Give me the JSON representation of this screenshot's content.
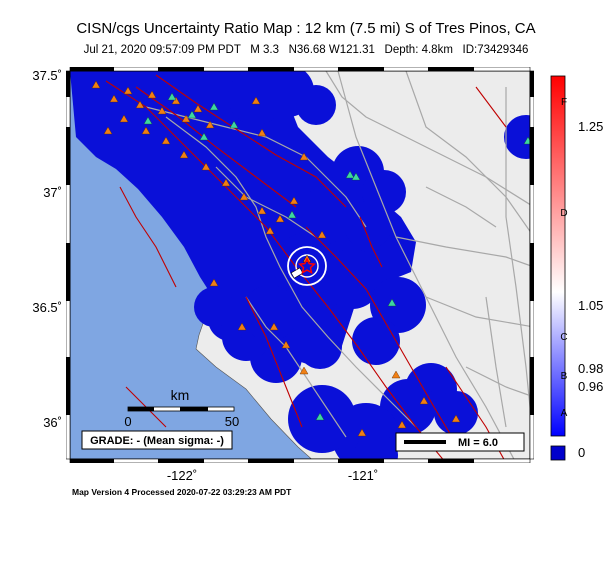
{
  "title": "CISN/cgs Uncertainty Ratio Map : 12 km (7.5 mi) S of Tres Pinos, CA",
  "subtitle": {
    "datetime": "Jul 21, 2020 09:57:09 PM PDT",
    "magnitude": "M 3.3",
    "location": "N36.68 W121.31",
    "depth": "Depth: 4.8km",
    "event_id": "ID:73429346"
  },
  "axes": {
    "lat_labels": [
      "37.5˚",
      "37˚",
      "36.5˚",
      "36˚"
    ],
    "lon_labels": [
      "-122˚",
      "-121˚"
    ]
  },
  "scale_bar": {
    "unit": "km",
    "ticks": [
      "0",
      "50"
    ]
  },
  "grade_box": "GRADE: - (Mean sigma: -)",
  "mi_legend": "MI = 6.0",
  "colorbar": {
    "labels": [
      "1.25",
      "1.05",
      "0.98",
      "0.96",
      "0"
    ],
    "letters": [
      "F",
      "D",
      "C",
      "B",
      "A"
    ],
    "colors": {
      "top": "#ff0000",
      "mid": "#ffffff",
      "bottom": "#0000ff",
      "nodata": "#0000cc"
    }
  },
  "footer": "Map Version 4 Processed 2020-07-22 03:29:23 AM PDT",
  "colors": {
    "ocean": "#7fa6e2",
    "land": "#ececec",
    "coverage": "#0a10d8",
    "fault": "#c00000",
    "road": "#9a9a9a",
    "station_orange": "#f07f14",
    "station_green": "#3ed6a0"
  }
}
